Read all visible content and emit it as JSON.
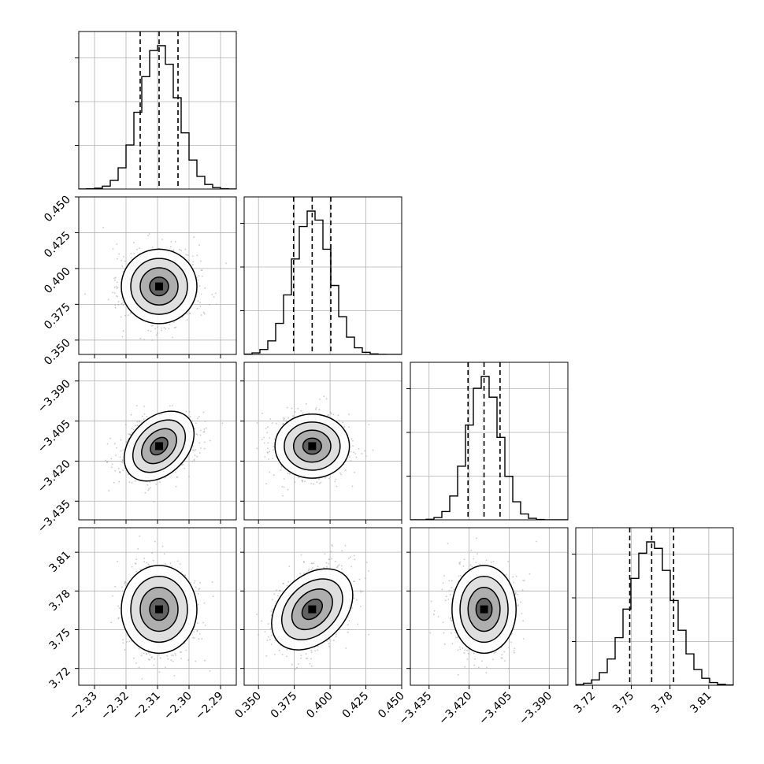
{
  "chart_data": {
    "type": "corner",
    "title": "",
    "parameters": [
      {
        "label": "",
        "range": [
          -2.335,
          -2.285
        ],
        "ticks": [
          -2.33,
          -2.32,
          -2.31,
          -2.3,
          -2.29
        ],
        "tick_labels": [
          "−2.33",
          "−2.32",
          "−2.31",
          "−2.30",
          "−2.29"
        ],
        "quantiles": [
          -2.3155,
          -2.3095,
          -2.3035
        ],
        "median": -2.3095,
        "sigma": 0.006
      },
      {
        "label": "",
        "range": [
          0.34,
          0.45
        ],
        "ticks": [
          0.35,
          0.375,
          0.4,
          0.425,
          0.45
        ],
        "tick_labels": [
          "0.350",
          "0.375",
          "0.400",
          "0.425",
          "0.450"
        ],
        "quantiles": [
          0.3745,
          0.3875,
          0.4005
        ],
        "median": 0.3875,
        "sigma": 0.013
      },
      {
        "label": "",
        "range": [
          -3.442,
          -3.383
        ],
        "ticks": [
          -3.435,
          -3.42,
          -3.405,
          -3.39
        ],
        "tick_labels": [
          "−3.435",
          "−3.420",
          "−3.405",
          "−3.390"
        ],
        "quantiles": [
          -3.4204,
          -3.4144,
          -3.4084
        ],
        "median": -3.4144,
        "sigma": 0.006
      },
      {
        "label": "",
        "range": [
          3.707,
          3.829
        ],
        "ticks": [
          3.72,
          3.75,
          3.78,
          3.81
        ],
        "tick_labels": [
          "3.72",
          "3.75",
          "3.78",
          "3.81"
        ],
        "quantiles": [
          3.7488,
          3.7658,
          3.7828
        ],
        "median": 3.7658,
        "sigma": 0.017
      }
    ],
    "correlations": [
      [
        1,
        0,
        0.35,
        0
      ],
      [
        0,
        1,
        0,
        0.35
      ],
      [
        0.35,
        0,
        1,
        0
      ],
      [
        0,
        0.35,
        0,
        1
      ]
    ],
    "histogram": {
      "bins": 20,
      "style": "step",
      "quantile_lines": "dashed"
    },
    "contour_levels_sigma": [
      0.5,
      1.0,
      1.5,
      2.0
    ],
    "grid": true,
    "colors": {
      "line": "#000000",
      "scatter": "#9a9a9a",
      "grid": "#b0b0b0",
      "background": "#ffffff"
    }
  }
}
